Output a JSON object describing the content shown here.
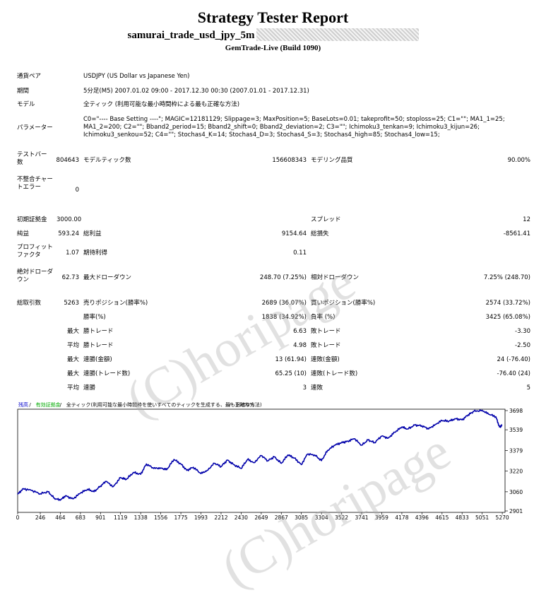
{
  "header": {
    "title": "Strategy Tester Report",
    "strategy_name": "samurai_trade_usd_jpy_5m",
    "build": "GemTrade-Live (Build 1090)"
  },
  "details": {
    "symbol_label": "通貨ペア",
    "symbol_value": "USDJPY (US Dollar vs Japanese Yen)",
    "period_label": "期間",
    "period_value": "5分足(M5) 2007.01.02 09:00 - 2017.12.30 00:30 (2007.01.01 - 2017.12.31)",
    "model_label": "モデル",
    "model_value": "全ティック (利用可能な最小時間枠による最も正確な方法)",
    "params_label": "パラメーター",
    "params_value": "C0=\"---- Base Setting ----\"; MAGIC=12181129; Slippage=3; MaxPosition=5; BaseLots=0.01; takeprofit=50; stoploss=25; C1=\"\"; MA1_1=25; MA1_2=200; C2=\"\"; Bband2_period=15; Bband2_shift=0; Bband2_deviation=2; C3=\"\"; Ichimoku3_tenkan=9; Ichimoku3_kijun=26; Ichimoku3_senkou=52; C4=\"\"; Stochas4_K=14; Stochas4_D=3; Stochas4_S=3; Stochas4_high=85; Stochas4_low=15;",
    "bars_label": "テストバー数",
    "bars_value": "804643",
    "ticks_label": "モデルティック数",
    "ticks_value": "156608343",
    "quality_label": "モデリング品質",
    "quality_value": "90.00%",
    "mismatch_label": "不整合チャートエラー",
    "mismatch_value": "0"
  },
  "results": {
    "deposit_label": "初期証拠金",
    "deposit_value": "3000.00",
    "spread_label": "スプレッド",
    "spread_value": "12",
    "net_label": "純益",
    "net_value": "593.24",
    "gross_profit_label": "総利益",
    "gross_profit_value": "9154.64",
    "gross_loss_label": "総損失",
    "gross_loss_value": "-8561.41",
    "pf_label": "プロフィットファクタ",
    "pf_value": "1.07",
    "expected_label": "期待利得",
    "expected_value": "0.11",
    "abs_dd_label": "絶対ドローダウン",
    "abs_dd_value": "62.73",
    "max_dd_label": "最大ドローダウン",
    "max_dd_value": "248.70 (7.25%)",
    "rel_dd_label": "相対ドローダウン",
    "rel_dd_value": "7.25% (248.70)",
    "trades_label": "総取引数",
    "trades_value": "5263",
    "short_label": "売りポジション(勝率%)",
    "short_value": "2689 (36.07%)",
    "long_label": "買いポジション(勝率%)",
    "long_value": "2574 (33.72%)",
    "winrate_label": "勝率(%)",
    "winrate_value": "1838 (34.92%)",
    "lossrate_label": "負率 (%)",
    "lossrate_value": "3425 (65.08%)",
    "max_label": "最大",
    "avg_label": "平均",
    "largest_win_label": "勝トレード",
    "largest_win_value": "6.63",
    "largest_loss_label": "敗トレード",
    "largest_loss_value": "-3.30",
    "avg_win_label": "勝トレード",
    "avg_win_value": "4.98",
    "avg_loss_label": "敗トレード",
    "avg_loss_value": "-2.50",
    "max_cons_wins_label": "連勝(金額)",
    "max_cons_wins_value": "13 (61.94)",
    "max_cons_losses_label": "連敗(金額)",
    "max_cons_losses_value": "24 (-76.40)",
    "max_cons_profit_label": "連勝(トレード数)",
    "max_cons_profit_value": "65.25 (10)",
    "max_cons_loss_label": "連敗(トレード数)",
    "max_cons_loss_value": "-76.40 (24)",
    "avg_cons_wins_label": "連勝",
    "avg_cons_wins_value": "3",
    "avg_cons_losses_label": "連敗",
    "avg_cons_losses_value": "5"
  },
  "watermark": {
    "text": "(C)horipage"
  },
  "chart_data": {
    "type": "line",
    "legend": [
      "残高",
      "/",
      "有効証拠金",
      "/",
      "全ティック(利用可能な最小時間枠を使いすべてのティックを生成する、最も正確な方法)",
      "/",
      "90.00%"
    ],
    "legend_colors": [
      "#0000cc",
      "#000000",
      "#00aa00",
      "#000000",
      "#000000",
      "#000000",
      "#000000"
    ],
    "x_ticks": [
      "0",
      "246",
      "464",
      "683",
      "901",
      "1119",
      "1338",
      "1556",
      "1775",
      "1993",
      "2212",
      "2430",
      "2649",
      "2867",
      "3085",
      "3304",
      "3522",
      "3741",
      "3959",
      "4178",
      "4396",
      "4615",
      "4833",
      "5051",
      "5270"
    ],
    "y_ticks": [
      "3698",
      "3539",
      "3379",
      "3220",
      "3060",
      "2901"
    ],
    "ylim": [
      2901,
      3698
    ],
    "xlim": [
      0,
      5300
    ],
    "line_color": "#0000aa",
    "series": [
      {
        "x": [
          0,
          60,
          150,
          246,
          330,
          400,
          464,
          520,
          600,
          683,
          760,
          830,
          901,
          960,
          1040,
          1119,
          1180,
          1260,
          1338,
          1400,
          1480,
          1556,
          1620,
          1700,
          1775,
          1840,
          1910,
          1993,
          2060,
          2140,
          2212,
          2280,
          2350,
          2430,
          2500,
          2570,
          2649,
          2720,
          2790,
          2867,
          2940,
          3010,
          3085,
          3150,
          3230,
          3304,
          3370,
          3450,
          3522,
          3590,
          3660,
          3741,
          3810,
          3880,
          3959,
          4030,
          4100,
          4178,
          4240,
          4320,
          4396,
          4470,
          4540,
          4615,
          4690,
          4760,
          4833,
          4900,
          4960,
          5051,
          5120,
          5200,
          5240,
          5270
        ],
        "y": [
          3040,
          3085,
          3070,
          3045,
          3060,
          3010,
          2995,
          3030,
          3005,
          3050,
          3080,
          3060,
          3105,
          3140,
          3100,
          3170,
          3155,
          3210,
          3195,
          3275,
          3240,
          3245,
          3230,
          3310,
          3275,
          3225,
          3250,
          3200,
          3225,
          3280,
          3255,
          3305,
          3270,
          3240,
          3310,
          3285,
          3340,
          3300,
          3330,
          3280,
          3345,
          3320,
          3270,
          3350,
          3345,
          3300,
          3380,
          3420,
          3440,
          3450,
          3470,
          3420,
          3460,
          3440,
          3490,
          3475,
          3520,
          3560,
          3545,
          3575,
          3570,
          3545,
          3580,
          3610,
          3605,
          3625,
          3615,
          3655,
          3680,
          3690,
          3660,
          3640,
          3560,
          3575
        ]
      }
    ]
  }
}
